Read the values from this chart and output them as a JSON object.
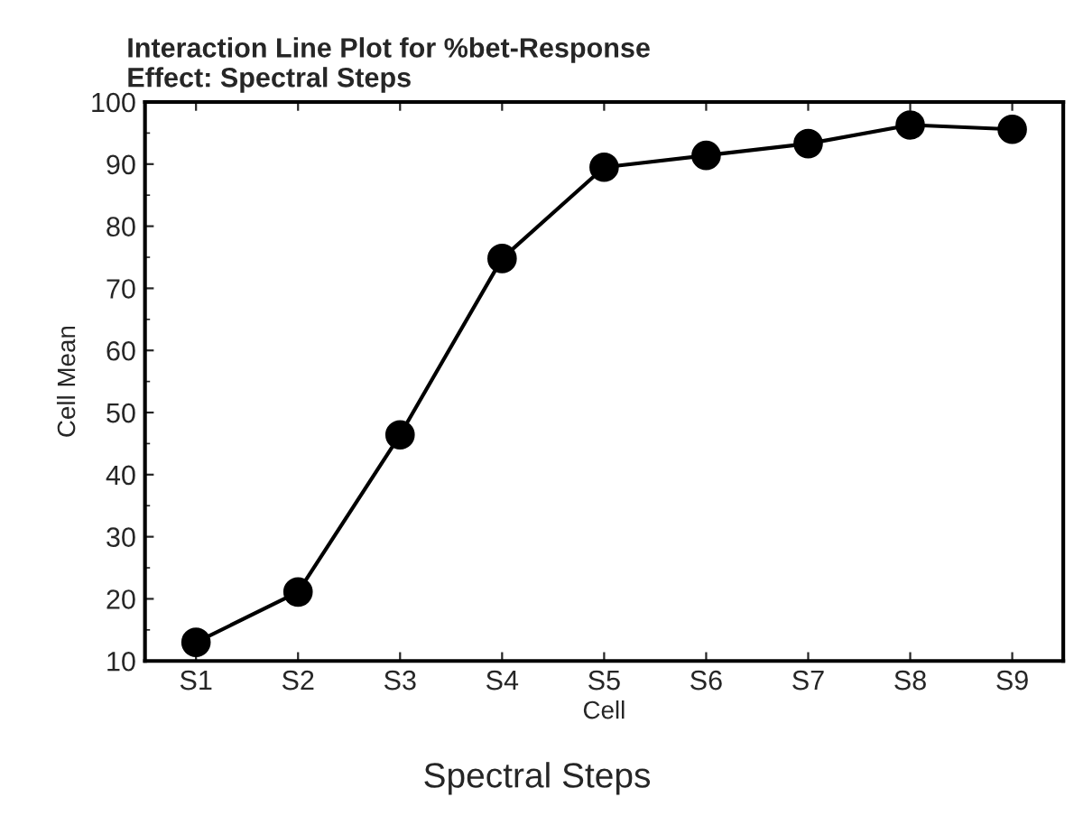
{
  "chart_data": {
    "type": "line",
    "title": "Interaction Line Plot for %bet-Response\nEffect: Spectral Steps",
    "xlabel": "Cell",
    "ylabel": "Cell Mean",
    "annotations": [
      "Spectral Steps"
    ],
    "categories": [
      "S1",
      "S2",
      "S3",
      "S4",
      "S5",
      "S6",
      "S7",
      "S8",
      "S9"
    ],
    "series": [
      {
        "color": "#000000",
        "values": [
          13.0,
          21.1,
          46.4,
          74.8,
          89.5,
          91.4,
          93.3,
          96.3,
          95.6
        ]
      }
    ],
    "ylim": [
      10,
      100
    ],
    "yticks": [
      10,
      20,
      30,
      40,
      50,
      60,
      70,
      80,
      90,
      100
    ],
    "grid": false,
    "legend": false,
    "marker": "circle",
    "line_style": "solid"
  }
}
